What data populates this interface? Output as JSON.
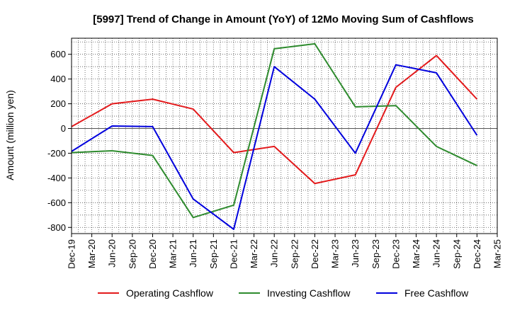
{
  "chart_data": {
    "type": "line",
    "title": "[5997]  Trend of Change in Amount (YoY) of 12Mo Moving Sum of Cashflows",
    "xlabel": "",
    "ylabel": "Amount (million yen)",
    "x": [
      "Dec-19",
      "Mar-20",
      "Jun-20",
      "Sep-20",
      "Dec-20",
      "Mar-21",
      "Jun-21",
      "Sep-21",
      "Dec-21",
      "Mar-22",
      "Jun-22",
      "Sep-22",
      "Dec-22",
      "Mar-23",
      "Jun-23",
      "Sep-23",
      "Dec-23",
      "Mar-24",
      "Jun-24",
      "Sep-24",
      "Dec-24",
      "Mar-25"
    ],
    "ylim": [
      -850,
      730
    ],
    "yticks": [
      -800,
      -600,
      -400,
      -200,
      0,
      200,
      400,
      600
    ],
    "ytick_labels": [
      "-800",
      "-600",
      "-400",
      "-200",
      "0",
      "200",
      "400",
      "600"
    ],
    "grid": true,
    "legend_position": "bottom",
    "series": [
      {
        "name": "Operating Cashflow",
        "color": "#e31a1c",
        "points": [
          [
            0,
            15
          ],
          [
            2,
            200
          ],
          [
            4,
            237
          ],
          [
            6,
            157
          ],
          [
            8,
            -195
          ],
          [
            10,
            -145
          ],
          [
            12,
            -445
          ],
          [
            14,
            -375
          ],
          [
            16,
            333
          ],
          [
            18,
            590
          ],
          [
            20,
            237
          ]
        ]
      },
      {
        "name": "Investing Cashflow",
        "color": "#2e8b2e",
        "points": [
          [
            0,
            -195
          ],
          [
            2,
            -180
          ],
          [
            4,
            -218
          ],
          [
            6,
            -720
          ],
          [
            8,
            -620
          ],
          [
            10,
            645
          ],
          [
            12,
            685
          ],
          [
            14,
            175
          ],
          [
            16,
            185
          ],
          [
            18,
            -145
          ],
          [
            20,
            -300
          ]
        ]
      },
      {
        "name": "Free Cashflow",
        "color": "#0000dd",
        "points": [
          [
            0,
            -185
          ],
          [
            2,
            20
          ],
          [
            4,
            15
          ],
          [
            6,
            -570
          ],
          [
            8,
            -815
          ],
          [
            10,
            500
          ],
          [
            12,
            237
          ],
          [
            14,
            -200
          ],
          [
            16,
            515
          ],
          [
            18,
            450
          ],
          [
            20,
            -55
          ]
        ]
      }
    ]
  }
}
